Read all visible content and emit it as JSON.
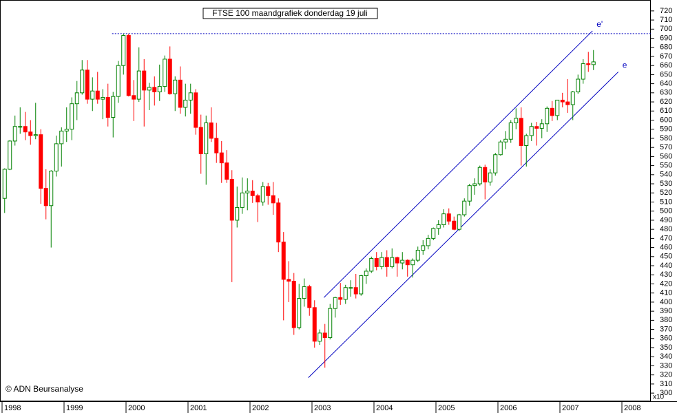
{
  "chart_data": {
    "type": "candlestick",
    "title": "FTSE 100 maandgrafiek donderdag 19 juli",
    "copyright": "© ADN Beursanalyse",
    "y_axis_label": "x10",
    "up_color": "#008000",
    "down_color": "#ff0000",
    "line_color": "#0000c0",
    "ylim": [
      291,
      732
    ],
    "yticks": [
      300,
      310,
      320,
      330,
      340,
      350,
      360,
      370,
      380,
      390,
      400,
      410,
      420,
      430,
      440,
      450,
      460,
      470,
      480,
      490,
      500,
      510,
      520,
      530,
      540,
      550,
      560,
      570,
      580,
      590,
      600,
      610,
      620,
      630,
      640,
      650,
      660,
      670,
      680,
      690,
      700,
      710,
      720
    ],
    "xlim": [
      -0.9,
      125.1
    ],
    "xticks": [
      {
        "value": -0.5,
        "label": "1998"
      },
      {
        "value": 11.5,
        "label": "1999"
      },
      {
        "value": 23.5,
        "label": "2000"
      },
      {
        "value": 35.5,
        "label": "2001"
      },
      {
        "value": 47.5,
        "label": "2002"
      },
      {
        "value": 59.5,
        "label": "2003"
      },
      {
        "value": 71.5,
        "label": "2004"
      },
      {
        "value": 83.5,
        "label": "2005"
      },
      {
        "value": 95.5,
        "label": "2006"
      },
      {
        "value": 107.5,
        "label": "2007"
      },
      {
        "value": 119.5,
        "label": "2008"
      }
    ],
    "x": [
      0,
      1,
      2,
      3,
      4,
      5,
      6,
      7,
      8,
      9,
      10,
      11,
      12,
      13,
      14,
      15,
      16,
      17,
      18,
      19,
      20,
      21,
      22,
      23,
      24,
      25,
      26,
      27,
      28,
      29,
      30,
      31,
      32,
      33,
      34,
      35,
      36,
      37,
      38,
      39,
      40,
      41,
      42,
      43,
      44,
      45,
      46,
      47,
      48,
      49,
      50,
      51,
      52,
      53,
      54,
      55,
      56,
      57,
      58,
      59,
      60,
      61,
      62,
      63,
      64,
      65,
      66,
      67,
      68,
      69,
      70,
      71,
      72,
      73,
      74,
      75,
      76,
      77,
      78,
      79,
      80,
      81,
      82,
      83,
      84,
      85,
      86,
      87,
      88,
      89,
      90,
      91,
      92,
      93,
      94,
      95,
      96,
      97,
      98,
      99,
      100,
      101,
      102,
      103,
      104,
      105,
      106,
      107,
      108,
      109,
      110,
      111,
      112,
      113,
      114
    ],
    "open": [
      514,
      546,
      577,
      593,
      593,
      587,
      583,
      584,
      525,
      506,
      544,
      574,
      588,
      590,
      618,
      630,
      655,
      623,
      632,
      623,
      625,
      603,
      626,
      660,
      693,
      627,
      623,
      654,
      633,
      636,
      631,
      637,
      667,
      629,
      644,
      614,
      622,
      630,
      592,
      563,
      597,
      580,
      564,
      553,
      535,
      490,
      504,
      520,
      522,
      517,
      510,
      527,
      517,
      509,
      466,
      425,
      423,
      372,
      404,
      417,
      394,
      357,
      366,
      361,
      393,
      405,
      403,
      416,
      416,
      409,
      429,
      434,
      448,
      439,
      449,
      439,
      449,
      443,
      446,
      441,
      446,
      457,
      462,
      470,
      481,
      485,
      497,
      489,
      480,
      496,
      511,
      528,
      530,
      548,
      532,
      542,
      562,
      576,
      579,
      597,
      602,
      572,
      583,
      593,
      591,
      596,
      613,
      605,
      622,
      620,
      617,
      631,
      645,
      662,
      661
    ],
    "high": [
      547,
      578,
      605,
      614,
      609,
      600,
      619,
      590,
      546,
      545,
      583,
      592,
      614,
      625,
      643,
      666,
      666,
      647,
      653,
      634,
      640,
      631,
      665,
      695,
      695,
      644,
      680,
      667,
      641,
      648,
      661,
      671,
      681,
      648,
      659,
      640,
      640,
      634,
      606,
      605,
      614,
      597,
      577,
      567,
      545,
      527,
      537,
      536,
      534,
      519,
      532,
      531,
      532,
      514,
      477,
      445,
      432,
      420,
      426,
      419,
      402,
      370,
      376,
      398,
      406,
      421,
      419,
      424,
      431,
      430,
      437,
      450,
      455,
      455,
      457,
      459,
      450,
      455,
      447,
      448,
      461,
      468,
      474,
      482,
      490,
      502,
      503,
      494,
      497,
      514,
      530,
      536,
      550,
      551,
      546,
      564,
      578,
      588,
      600,
      613,
      614,
      585,
      597,
      598,
      601,
      615,
      621,
      622,
      630,
      645,
      632,
      650,
      667,
      675,
      677
    ],
    "low": [
      498,
      545,
      572,
      585,
      578,
      573,
      579,
      508,
      491,
      460,
      538,
      549,
      576,
      578,
      600,
      628,
      618,
      610,
      618,
      601,
      593,
      581,
      619,
      650,
      626,
      599,
      620,
      593,
      611,
      616,
      621,
      631,
      628,
      610,
      607,
      604,
      607,
      584,
      541,
      529,
      576,
      553,
      531,
      531,
      422,
      482,
      497,
      501,
      509,
      488,
      506,
      507,
      496,
      455,
      380,
      400,
      364,
      370,
      395,
      385,
      350,
      353,
      328,
      359,
      383,
      397,
      398,
      406,
      404,
      407,
      420,
      432,
      435,
      436,
      428,
      437,
      428,
      436,
      428,
      427,
      444,
      452,
      458,
      468,
      474,
      482,
      485,
      479,
      478,
      494,
      506,
      518,
      528,
      513,
      528,
      539,
      561,
      568,
      575,
      590,
      550,
      549,
      577,
      572,
      580,
      587,
      599,
      600,
      614,
      608,
      600,
      629,
      640,
      653,
      655
    ],
    "close": [
      546,
      577,
      593,
      593,
      587,
      583,
      584,
      525,
      506,
      544,
      574,
      588,
      590,
      618,
      630,
      655,
      623,
      632,
      623,
      625,
      603,
      626,
      660,
      693,
      627,
      623,
      654,
      633,
      636,
      631,
      637,
      667,
      629,
      644,
      614,
      622,
      630,
      592,
      563,
      597,
      580,
      564,
      553,
      535,
      490,
      504,
      520,
      522,
      517,
      510,
      527,
      517,
      509,
      466,
      425,
      423,
      372,
      404,
      417,
      394,
      357,
      366,
      361,
      393,
      405,
      403,
      416,
      416,
      409,
      429,
      434,
      448,
      439,
      449,
      439,
      449,
      443,
      446,
      441,
      446,
      457,
      462,
      470,
      481,
      485,
      497,
      489,
      480,
      496,
      511,
      528,
      530,
      548,
      532,
      542,
      562,
      576,
      579,
      597,
      602,
      572,
      583,
      593,
      591,
      596,
      613,
      605,
      622,
      620,
      617,
      631,
      645,
      662,
      661,
      664
    ],
    "trend_lines": [
      {
        "label": "e'",
        "x": [
          61.8,
          113.8
        ],
        "values": [
          405,
          698
        ]
      },
      {
        "label": "e",
        "x": [
          58.8,
          118.8
        ],
        "values": [
          317,
          653
        ]
      }
    ],
    "hline": {
      "value": 695,
      "x": [
        20.8,
        125.1
      ]
    }
  }
}
